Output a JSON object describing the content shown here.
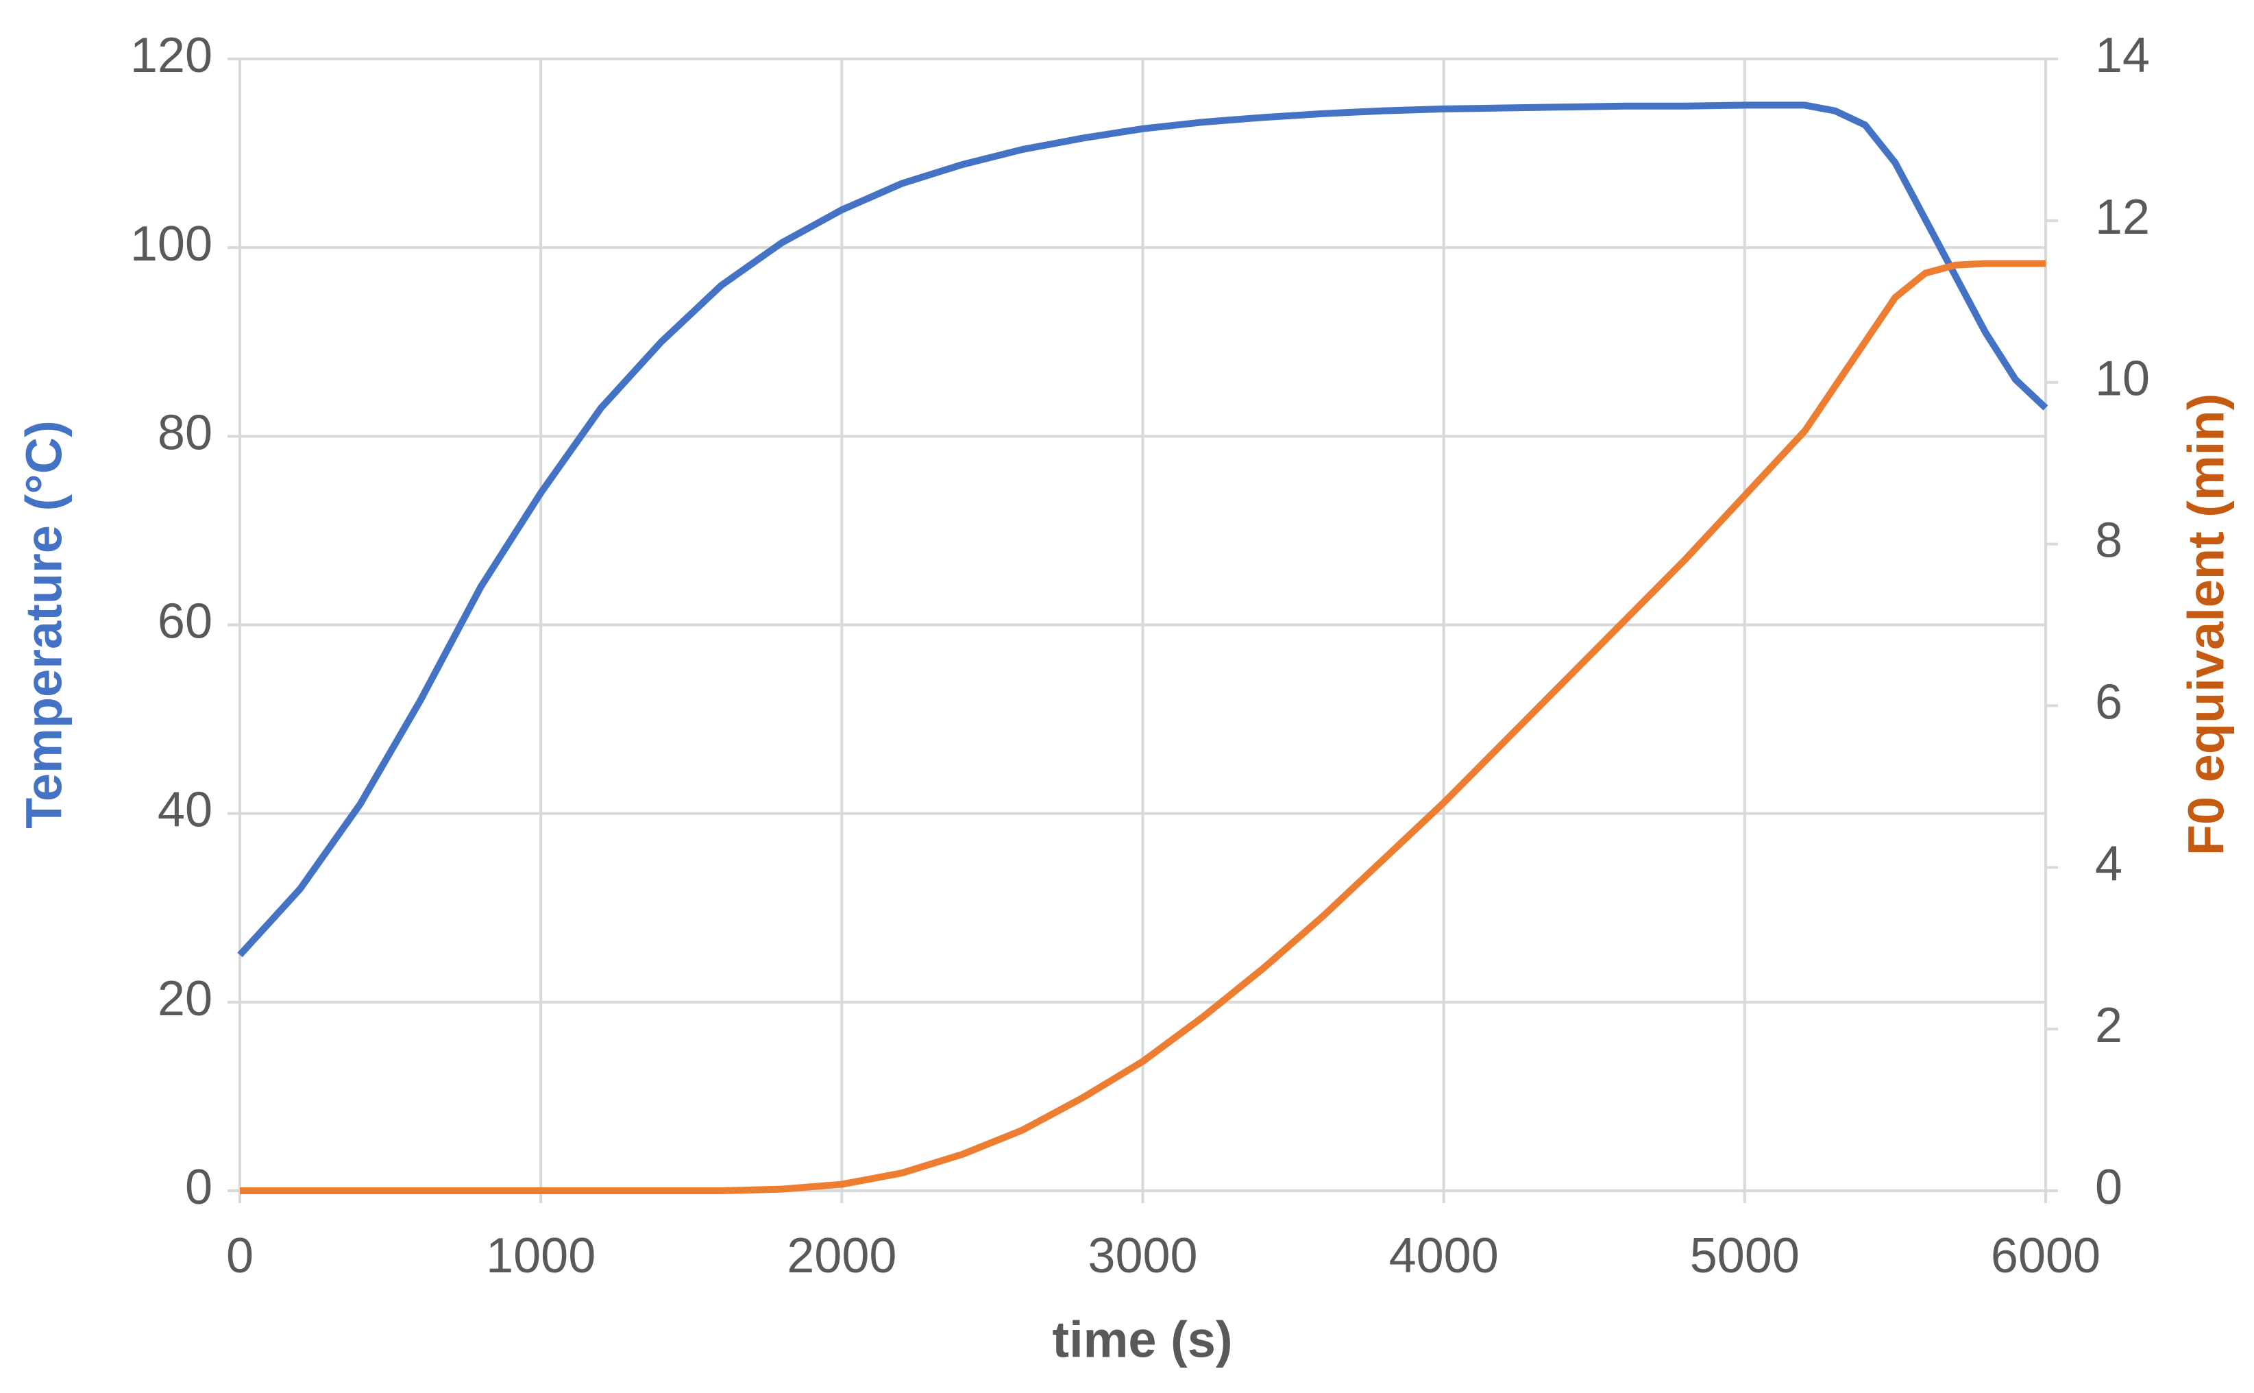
{
  "chart_data": {
    "type": "line",
    "x_label": "time (s)",
    "y_label": "Temperature (°C)",
    "y2_label": "F0 equivalent (min)",
    "x": [
      0,
      200,
      400,
      600,
      800,
      1000,
      1200,
      1400,
      1600,
      1800,
      2000,
      2200,
      2400,
      2600,
      2800,
      3000,
      3200,
      3400,
      3600,
      3800,
      4000,
      4200,
      4400,
      4600,
      4800,
      5000,
      5200,
      5300,
      5400,
      5500,
      5600,
      5700,
      5800,
      5900,
      6000
    ],
    "series": [
      {
        "name": "Temperature (°C)",
        "color": "#4472c4",
        "values": [
          25,
          32,
          41,
          52,
          64,
          74,
          83,
          90,
          96,
          100.5,
          104,
          106.8,
          108.8,
          110.4,
          111.6,
          112.6,
          113.3,
          113.8,
          114.2,
          114.5,
          114.7,
          114.8,
          114.9,
          115,
          115,
          115.1,
          115.1,
          114.5,
          113,
          109,
          103,
          97,
          91,
          86,
          83
        ]
      },
      {
        "name": "F0 equivalent (min)",
        "color": "#ed7d31",
        "axis": "y2",
        "values": [
          0,
          0,
          0,
          0,
          0,
          0,
          0,
          0,
          0,
          0.02,
          0.08,
          0.22,
          0.45,
          0.75,
          1.15,
          1.6,
          2.15,
          2.75,
          3.4,
          4.1,
          4.8,
          5.55,
          6.3,
          7.05,
          7.8,
          8.6,
          9.4,
          9.95,
          10.5,
          11.05,
          11.35,
          11.45,
          11.47,
          11.47,
          11.47
        ]
      }
    ],
    "xlim": [
      0,
      6000
    ],
    "xticks": [
      0,
      1000,
      2000,
      3000,
      4000,
      5000,
      6000
    ],
    "ylim": [
      0,
      120
    ],
    "yticks": [
      0,
      20,
      40,
      60,
      80,
      100,
      120
    ],
    "y2lim": [
      0,
      14
    ],
    "y2ticks": [
      0,
      2,
      4,
      6,
      8,
      10,
      12,
      14
    ],
    "grid": true,
    "y_label_color": "#4472c4",
    "y2_label_color": "#c55a11"
  }
}
